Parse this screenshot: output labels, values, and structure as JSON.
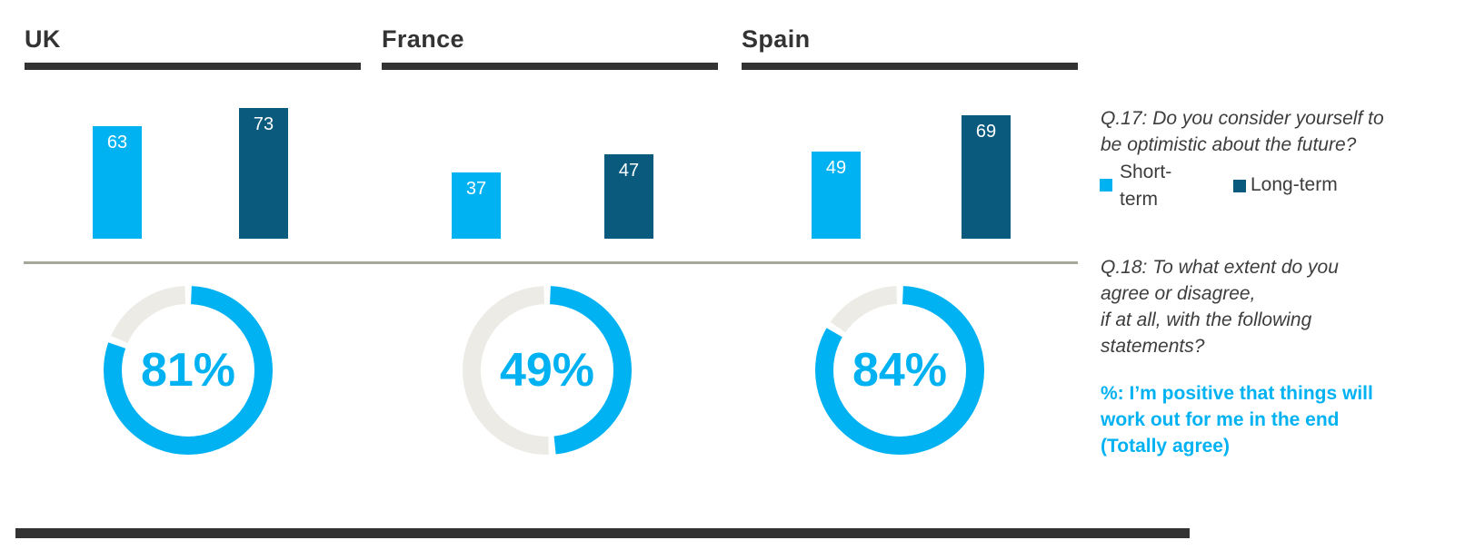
{
  "sections": [
    {
      "country": "UK",
      "short_term": 63,
      "long_term": 73,
      "agree_pct": 81,
      "agree_label": "81%"
    },
    {
      "country": "France",
      "short_term": 37,
      "long_term": 47,
      "agree_pct": 49,
      "agree_label": "49%"
    },
    {
      "country": "Spain",
      "short_term": 49,
      "long_term": 69,
      "agree_pct": 84,
      "agree_label": "84%"
    }
  ],
  "questions": {
    "q17": "Q.17: Do you consider yourself to\nbe optimistic about the future?",
    "q18": "Q.18: To what extent do you\nagree or disagree,\nif at all, with the following\nstatements?",
    "statement": "%: I’m positive that things will\nwork out for me in the end\n(Totally agree)"
  },
  "legend": [
    {
      "label": "Short-\nterm",
      "color": "#00b2f2"
    },
    {
      "label": "Long-term",
      "color": "#0a5a7e"
    }
  ],
  "colors": {
    "accent_light": "#00b2f2",
    "accent_dark": "#0a5a7e",
    "donut_track": "#ecebe6",
    "heading": "#333333",
    "body_text": "#3d3d3d",
    "divider": "#a7a69a"
  },
  "chart_data": [
    {
      "type": "bar",
      "title": "Q.17: Do you consider yourself to be optimistic about the future?",
      "categories": [
        "UK",
        "France",
        "Spain"
      ],
      "series": [
        {
          "name": "Short-term",
          "values": [
            63,
            37,
            49
          ],
          "color": "#00b2f2"
        },
        {
          "name": "Long-term",
          "values": [
            73,
            47,
            69
          ],
          "color": "#0a5a7e"
        }
      ],
      "ylim": [
        0,
        100
      ],
      "grid": false,
      "data_labels": true,
      "legend_position": "right"
    },
    {
      "type": "pie",
      "variant": "donut",
      "title": "%: I’m positive that things will work out for me in the end (Totally agree)",
      "categories": [
        "UK",
        "France",
        "Spain"
      ],
      "values": [
        81,
        49,
        84
      ],
      "unit": "%",
      "colors": {
        "filled": "#00b2f2",
        "remainder": "#ecebe6"
      }
    }
  ]
}
